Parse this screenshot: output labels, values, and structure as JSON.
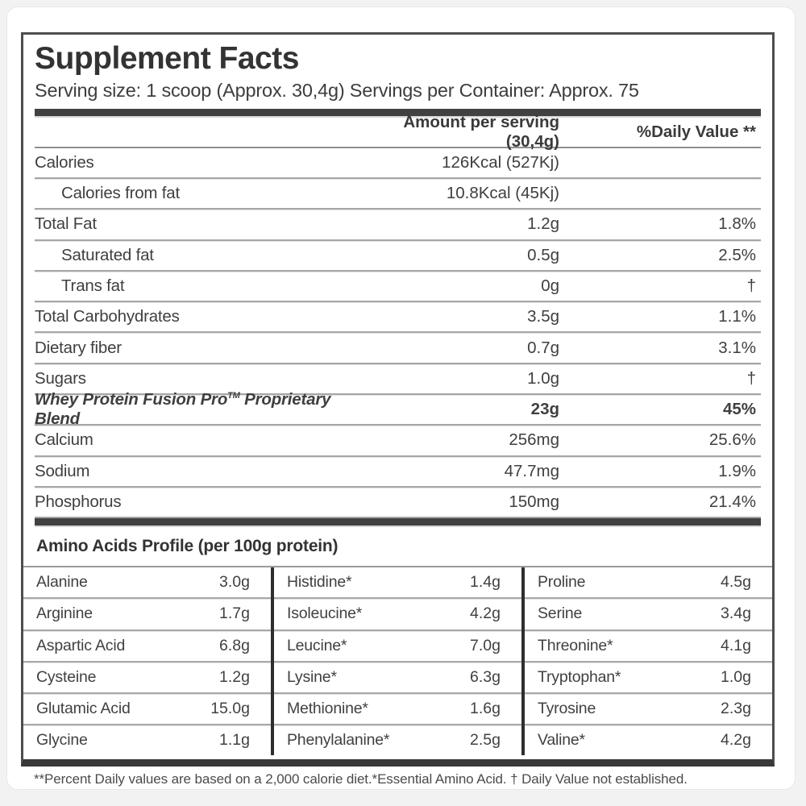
{
  "title": "Supplement Facts",
  "serving_line": "Serving size: 1 scoop (Approx. 30,4g) Servings per Container: Approx. 75",
  "header": {
    "amount_col": "Amount per serving (30,4g)",
    "dv_col": "%Daily Value **"
  },
  "rows": [
    {
      "label": "Calories",
      "amount": "126Kcal (527Kj)",
      "dv": ""
    },
    {
      "label": "Calories from fat",
      "amount": "10.8Kcal (45Kj)",
      "dv": ""
    },
    {
      "label": "Total Fat",
      "amount": "1.2g",
      "dv": "1.8%"
    },
    {
      "label": "Saturated fat",
      "amount": "0.5g",
      "dv": "2.5%"
    },
    {
      "label": "Trans fat",
      "amount": "0g",
      "dv": "†"
    },
    {
      "label": "Total Carbohydrates",
      "amount": "3.5g",
      "dv": "1.1%"
    },
    {
      "label": "Dietary fiber",
      "amount": "0.7g",
      "dv": "3.1%"
    },
    {
      "label": "Sugars",
      "amount": "1.0g",
      "dv": "†"
    },
    {
      "label_pre": "Whey Protein Fusion Pro",
      "label_tm": "TM",
      "label_post": " Proprietary Blend",
      "amount": "23g",
      "dv": "45%"
    },
    {
      "label": "Calcium",
      "amount": "256mg",
      "dv": "25.6%"
    },
    {
      "label": "Sodium",
      "amount": "47.7mg",
      "dv": "1.9%"
    },
    {
      "label": "Phosphorus",
      "amount": "150mg",
      "dv": "21.4%"
    }
  ],
  "amino": {
    "heading": "Amino Acids Profile (per 100g protein)",
    "columns": [
      {
        "rows": [
          {
            "name": "Alanine",
            "value": "3.0g"
          },
          {
            "name": "Arginine",
            "value": "1.7g"
          },
          {
            "name": "Aspartic Acid",
            "value": "6.8g"
          },
          {
            "name": "Cysteine",
            "value": "1.2g"
          },
          {
            "name": "Glutamic Acid",
            "value": "15.0g"
          },
          {
            "name": "Glycine",
            "value": "1.1g"
          }
        ]
      },
      {
        "rows": [
          {
            "name": "Histidine*",
            "value": "1.4g"
          },
          {
            "name": "Isoleucine*",
            "value": "4.2g"
          },
          {
            "name": "Leucine*",
            "value": "7.0g"
          },
          {
            "name": "Lysine*",
            "value": "6.3g"
          },
          {
            "name": "Methionine*",
            "value": "1.6g"
          },
          {
            "name": "Phenylalanine*",
            "value": "2.5g"
          }
        ]
      },
      {
        "rows": [
          {
            "name": "Proline",
            "value": "4.5g"
          },
          {
            "name": "Serine",
            "value": "3.4g"
          },
          {
            "name": "Threonine*",
            "value": "4.1g"
          },
          {
            "name": "Tryptophan*",
            "value": "1.0g"
          },
          {
            "name": "Tyrosine",
            "value": "2.3g"
          },
          {
            "name": "Valine*",
            "value": "4.2g"
          }
        ]
      }
    ]
  },
  "footnote": "**Percent Daily values are based on a 2,000 calorie diet.*Essential Amino Acid. † Daily Value not established.",
  "colors": {
    "text": "#3f3f3f",
    "thick_bar": "#414141",
    "separator": "#a6a6a6",
    "page_background": "#f2f2f2"
  }
}
